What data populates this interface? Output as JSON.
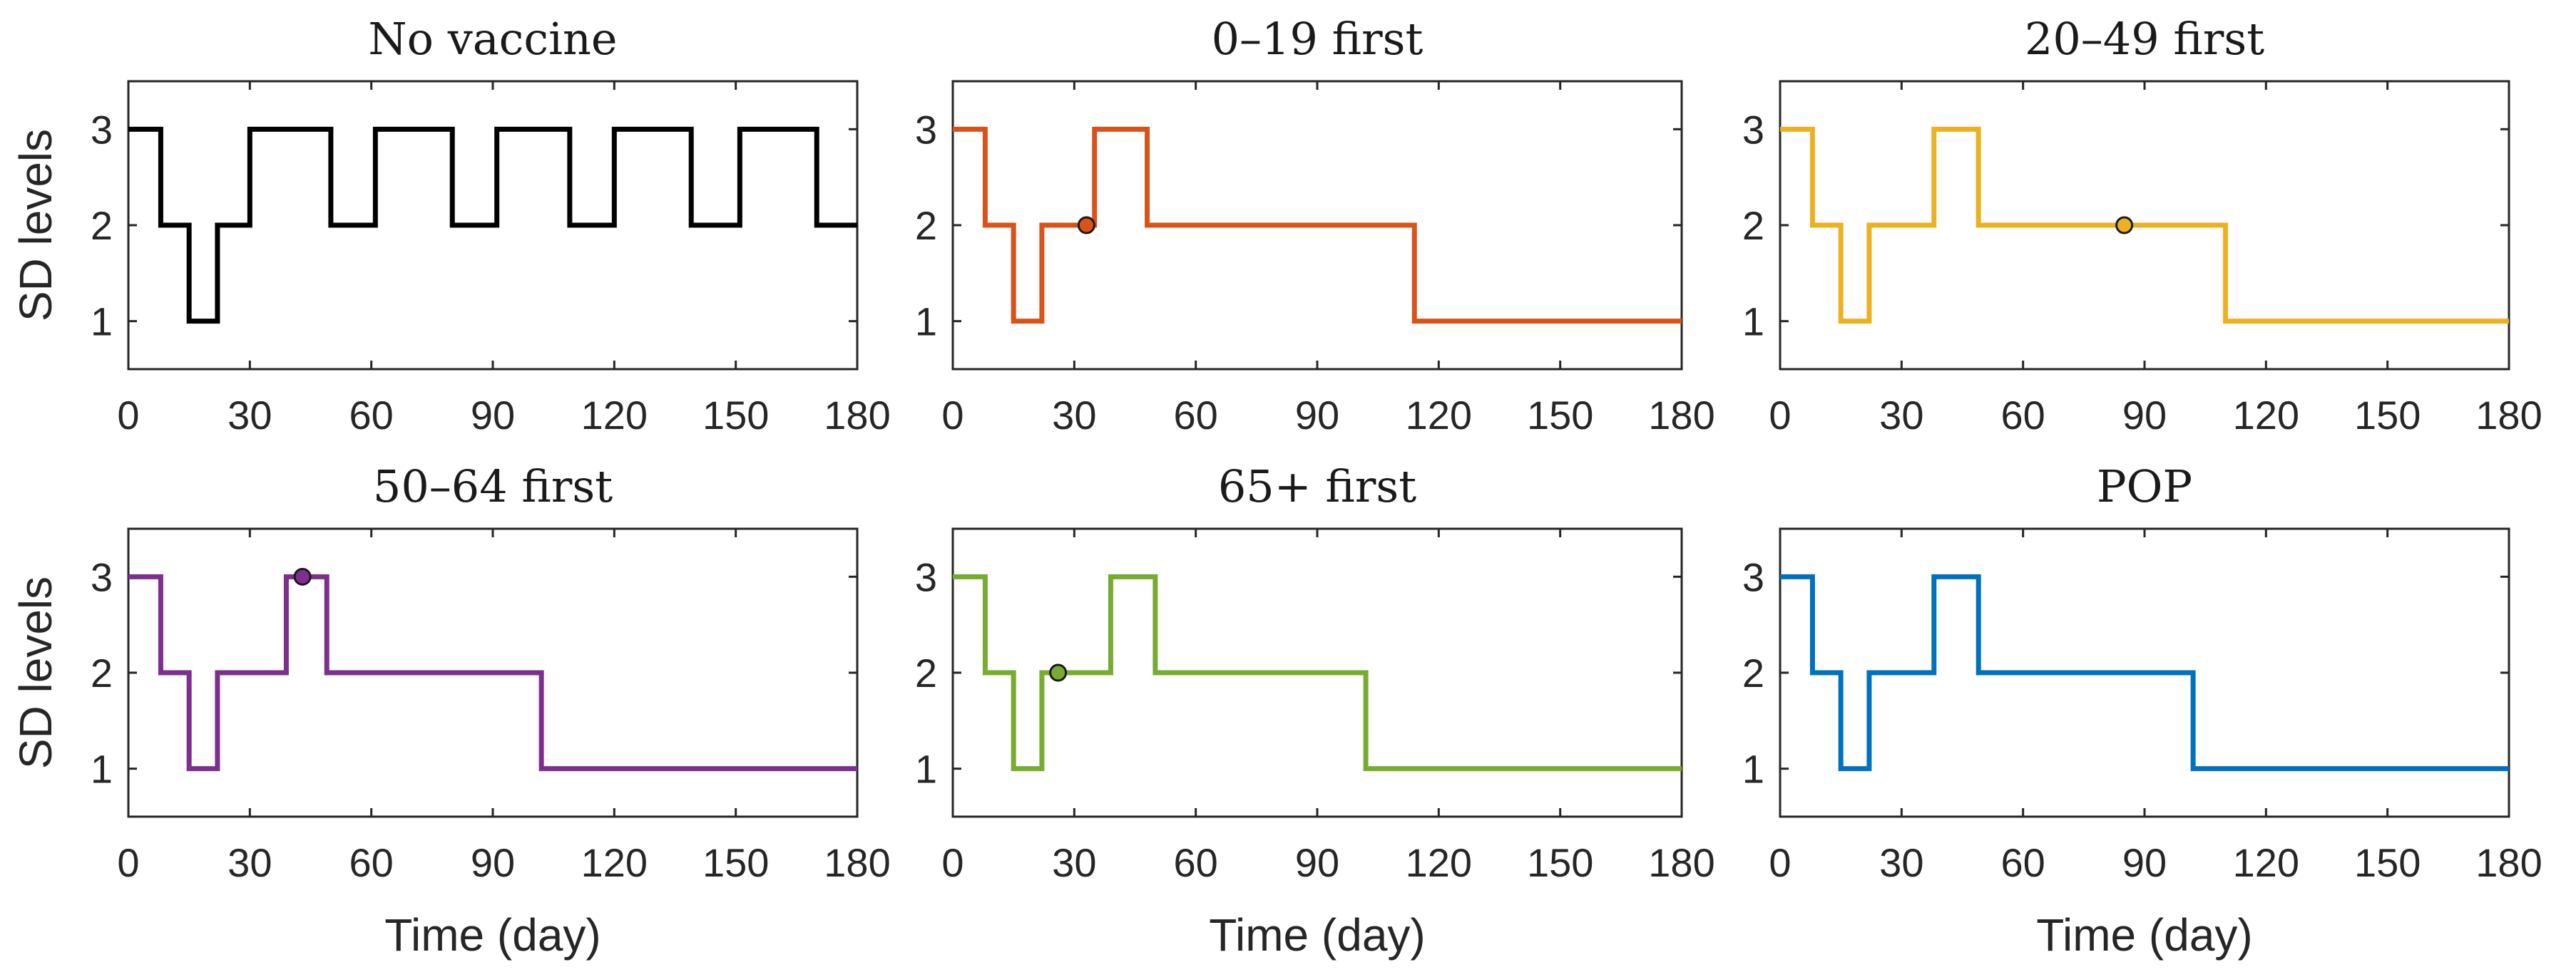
{
  "chart_data": [
    {
      "type": "line",
      "title": "No vaccine",
      "xlabel": "",
      "ylabel": "SD levels",
      "xlim": [
        0,
        180
      ],
      "ylim": [
        0.5,
        3.5
      ],
      "xticks": [
        "0",
        "30",
        "60",
        "90",
        "120",
        "150",
        "180"
      ],
      "yticks": [
        "1",
        "2",
        "3"
      ],
      "color": "#000000",
      "x": [
        0,
        8,
        8,
        15,
        15,
        22,
        22,
        30,
        30,
        50,
        50,
        61,
        61,
        80,
        80,
        91,
        91,
        109,
        109,
        120,
        120,
        139,
        139,
        151,
        151,
        170,
        170,
        180
      ],
      "y": [
        3,
        3,
        2,
        2,
        1,
        1,
        2,
        2,
        3,
        3,
        2,
        2,
        3,
        3,
        2,
        2,
        3,
        3,
        2,
        2,
        3,
        3,
        2,
        2,
        3,
        3,
        2,
        2
      ],
      "marker": null
    },
    {
      "type": "line",
      "title": "0–19 first",
      "xlabel": "",
      "ylabel": "",
      "xlim": [
        0,
        180
      ],
      "ylim": [
        0.5,
        3.5
      ],
      "xticks": [
        "0",
        "30",
        "60",
        "90",
        "120",
        "150",
        "180"
      ],
      "yticks": [
        "1",
        "2",
        "3"
      ],
      "color": "#D95319",
      "x": [
        0,
        8,
        8,
        15,
        15,
        22,
        22,
        35,
        35,
        48,
        48,
        114,
        114,
        180
      ],
      "y": [
        3,
        3,
        2,
        2,
        1,
        1,
        2,
        2,
        3,
        3,
        2,
        2,
        1,
        1
      ],
      "marker": {
        "x": 33,
        "y": 2
      }
    },
    {
      "type": "line",
      "title": "20–49 first",
      "xlabel": "",
      "ylabel": "",
      "xlim": [
        0,
        180
      ],
      "ylim": [
        0.5,
        3.5
      ],
      "xticks": [
        "0",
        "30",
        "60",
        "90",
        "120",
        "150",
        "180"
      ],
      "yticks": [
        "1",
        "2",
        "3"
      ],
      "color": "#EDB120",
      "x": [
        0,
        8,
        8,
        15,
        15,
        22,
        22,
        38,
        38,
        49,
        49,
        110,
        110,
        180
      ],
      "y": [
        3,
        3,
        2,
        2,
        1,
        1,
        2,
        2,
        3,
        3,
        2,
        2,
        1,
        1
      ],
      "marker": {
        "x": 85,
        "y": 2
      }
    },
    {
      "type": "line",
      "title": "50–64 first",
      "xlabel": "Time (day)",
      "ylabel": "SD levels",
      "xlim": [
        0,
        180
      ],
      "ylim": [
        0.5,
        3.5
      ],
      "xticks": [
        "0",
        "30",
        "60",
        "90",
        "120",
        "150",
        "180"
      ],
      "yticks": [
        "1",
        "2",
        "3"
      ],
      "color": "#7E2F8E",
      "x": [
        0,
        8,
        8,
        15,
        15,
        22,
        22,
        39,
        39,
        49,
        49,
        102,
        102,
        180
      ],
      "y": [
        3,
        3,
        2,
        2,
        1,
        1,
        2,
        2,
        3,
        3,
        2,
        2,
        1,
        1
      ],
      "marker": {
        "x": 43,
        "y": 3
      }
    },
    {
      "type": "line",
      "title": "65+ first",
      "xlabel": "Time (day)",
      "ylabel": "",
      "xlim": [
        0,
        180
      ],
      "ylim": [
        0.5,
        3.5
      ],
      "xticks": [
        "0",
        "30",
        "60",
        "90",
        "120",
        "150",
        "180"
      ],
      "yticks": [
        "1",
        "2",
        "3"
      ],
      "color": "#77AC30",
      "x": [
        0,
        8,
        8,
        15,
        15,
        22,
        22,
        39,
        39,
        50,
        50,
        102,
        102,
        180
      ],
      "y": [
        3,
        3,
        2,
        2,
        1,
        1,
        2,
        2,
        3,
        3,
        2,
        2,
        1,
        1
      ],
      "marker": {
        "x": 26,
        "y": 2
      }
    },
    {
      "type": "line",
      "title": "POP",
      "xlabel": "Time (day)",
      "ylabel": "",
      "xlim": [
        0,
        180
      ],
      "ylim": [
        0.5,
        3.5
      ],
      "xticks": [
        "0",
        "30",
        "60",
        "90",
        "120",
        "150",
        "180"
      ],
      "yticks": [
        "1",
        "2",
        "3"
      ],
      "color": "#0072BD",
      "x": [
        0,
        8,
        8,
        15,
        15,
        22,
        22,
        38,
        38,
        49,
        49,
        102,
        102,
        180
      ],
      "y": [
        3,
        3,
        2,
        2,
        1,
        1,
        2,
        2,
        3,
        3,
        2,
        2,
        1,
        1
      ],
      "marker": null
    }
  ]
}
